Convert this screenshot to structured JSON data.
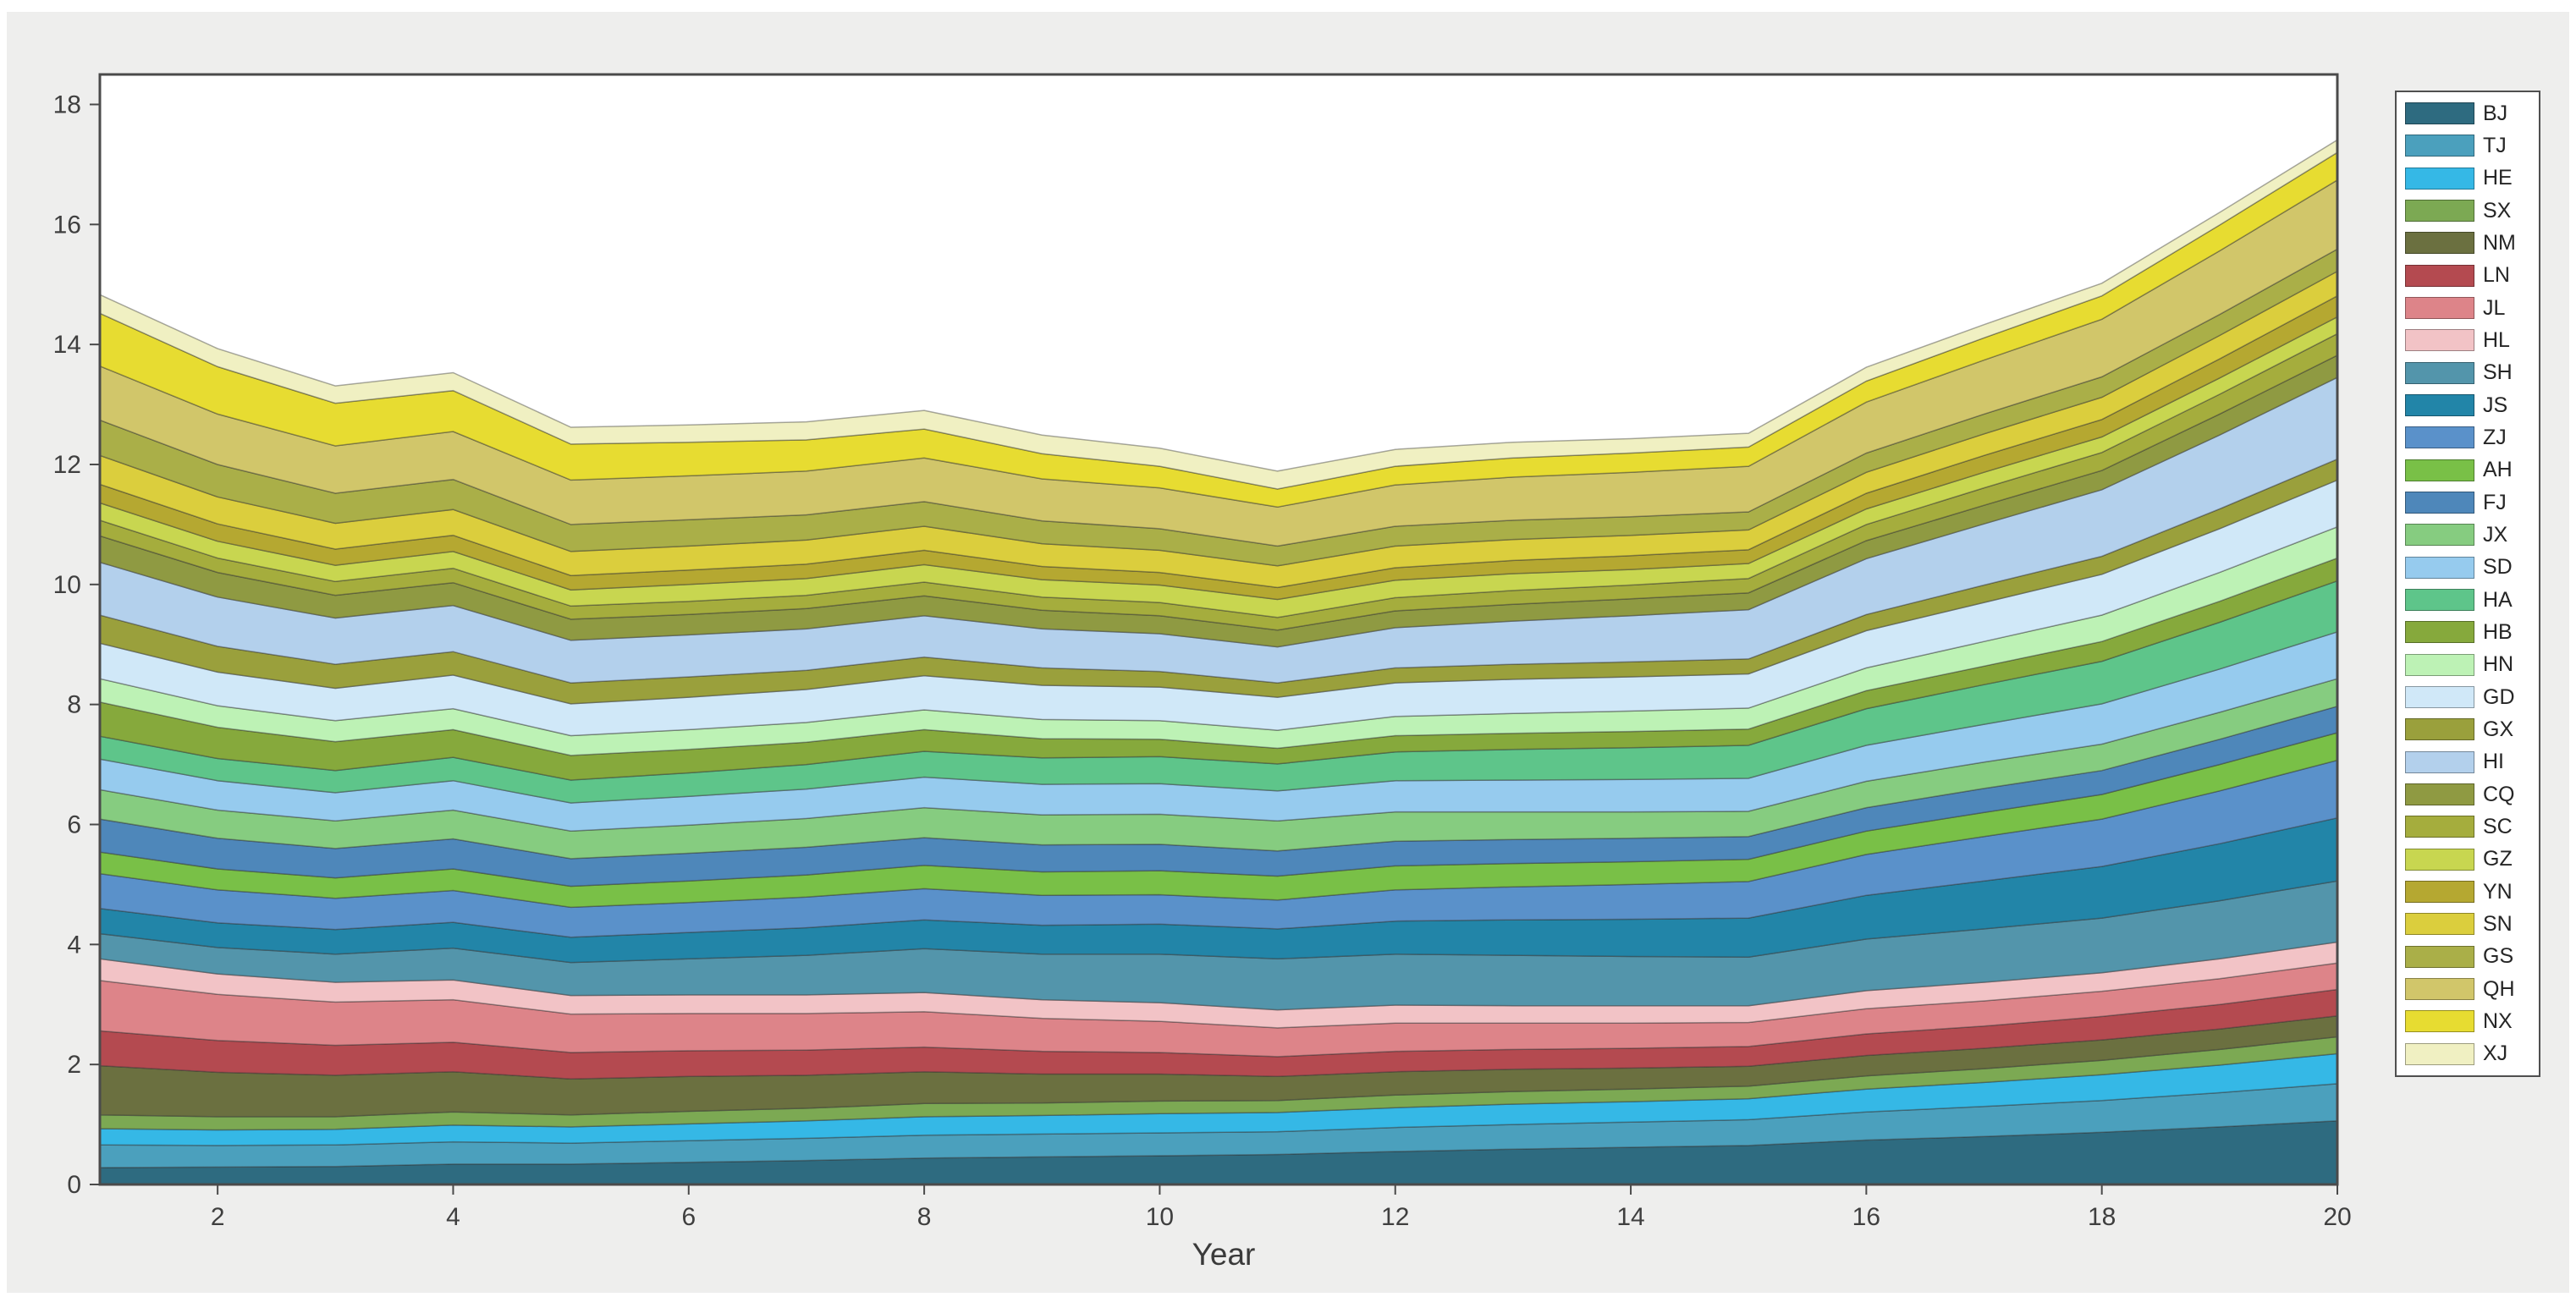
{
  "figure": {
    "background": "#eeeeed",
    "plot_background": "#ffffff",
    "axis_color": "#4a4a4a",
    "tick_label_color": "#3f3f3f",
    "area_edge_color": "rgba(50,50,50,0.42)"
  },
  "chart_data": {
    "type": "area",
    "stacked": true,
    "title": "",
    "xlabel": "Year",
    "ylabel": "",
    "x": [
      1,
      2,
      3,
      4,
      5,
      6,
      7,
      8,
      9,
      10,
      11,
      12,
      13,
      14,
      15,
      16,
      17,
      18,
      19,
      20
    ],
    "xlim": [
      1,
      20
    ],
    "ylim": [
      0,
      18.5
    ],
    "x_ticks": [
      2,
      4,
      6,
      8,
      10,
      12,
      14,
      16,
      18,
      20
    ],
    "y_ticks": [
      0,
      2,
      4,
      6,
      8,
      10,
      12,
      14,
      16,
      18
    ],
    "grid": false,
    "legend_position": "right-outside",
    "series": [
      {
        "name": "BJ",
        "color": "#2e6b80",
        "values": [
          0.28,
          0.29,
          0.3,
          0.34,
          0.34,
          0.37,
          0.4,
          0.44,
          0.46,
          0.48,
          0.5,
          0.55,
          0.59,
          0.62,
          0.65,
          0.74,
          0.8,
          0.87,
          0.96,
          1.06
        ]
      },
      {
        "name": "TJ",
        "color": "#4ba0bd",
        "values": [
          0.38,
          0.36,
          0.36,
          0.37,
          0.35,
          0.36,
          0.37,
          0.38,
          0.38,
          0.38,
          0.38,
          0.4,
          0.41,
          0.42,
          0.43,
          0.47,
          0.5,
          0.53,
          0.57,
          0.62
        ]
      },
      {
        "name": "HE",
        "color": "#35b8e6",
        "values": [
          0.27,
          0.26,
          0.26,
          0.28,
          0.27,
          0.28,
          0.29,
          0.31,
          0.31,
          0.32,
          0.32,
          0.33,
          0.34,
          0.34,
          0.35,
          0.38,
          0.4,
          0.43,
          0.46,
          0.5
        ]
      },
      {
        "name": "SX",
        "color": "#7ca953",
        "values": [
          0.23,
          0.22,
          0.21,
          0.22,
          0.2,
          0.21,
          0.21,
          0.22,
          0.21,
          0.21,
          0.2,
          0.21,
          0.21,
          0.21,
          0.21,
          0.22,
          0.23,
          0.24,
          0.26,
          0.28
        ]
      },
      {
        "name": "NM",
        "color": "#6b7040",
        "values": [
          0.82,
          0.74,
          0.69,
          0.67,
          0.6,
          0.58,
          0.55,
          0.53,
          0.48,
          0.45,
          0.4,
          0.39,
          0.37,
          0.35,
          0.33,
          0.34,
          0.34,
          0.34,
          0.34,
          0.35
        ]
      },
      {
        "name": "LN",
        "color": "#b44a50",
        "values": [
          0.58,
          0.53,
          0.5,
          0.49,
          0.44,
          0.43,
          0.42,
          0.41,
          0.38,
          0.36,
          0.33,
          0.34,
          0.33,
          0.33,
          0.33,
          0.36,
          0.37,
          0.39,
          0.41,
          0.44
        ]
      },
      {
        "name": "JL",
        "color": "#dd8489",
        "values": [
          0.84,
          0.77,
          0.72,
          0.71,
          0.64,
          0.62,
          0.61,
          0.59,
          0.55,
          0.52,
          0.48,
          0.47,
          0.44,
          0.42,
          0.4,
          0.42,
          0.42,
          0.42,
          0.43,
          0.44
        ]
      },
      {
        "name": "HL",
        "color": "#f2c3c6",
        "values": [
          0.36,
          0.34,
          0.33,
          0.33,
          0.31,
          0.31,
          0.31,
          0.32,
          0.31,
          0.31,
          0.3,
          0.3,
          0.29,
          0.29,
          0.28,
          0.3,
          0.31,
          0.31,
          0.33,
          0.35
        ]
      },
      {
        "name": "SH",
        "color": "#5395ab",
        "values": [
          0.42,
          0.44,
          0.47,
          0.53,
          0.55,
          0.6,
          0.66,
          0.73,
          0.76,
          0.81,
          0.85,
          0.85,
          0.84,
          0.82,
          0.81,
          0.86,
          0.89,
          0.91,
          0.97,
          1.02
        ]
      },
      {
        "name": "JS",
        "color": "#2285a8",
        "values": [
          0.42,
          0.41,
          0.41,
          0.43,
          0.42,
          0.44,
          0.46,
          0.48,
          0.48,
          0.5,
          0.5,
          0.55,
          0.59,
          0.62,
          0.65,
          0.73,
          0.8,
          0.86,
          0.95,
          1.05
        ]
      },
      {
        "name": "ZJ",
        "color": "#5a91ca",
        "values": [
          0.58,
          0.55,
          0.52,
          0.53,
          0.5,
          0.5,
          0.51,
          0.52,
          0.5,
          0.49,
          0.48,
          0.52,
          0.55,
          0.58,
          0.61,
          0.68,
          0.74,
          0.79,
          0.88,
          0.96
        ]
      },
      {
        "name": "AH",
        "color": "#79c047",
        "values": [
          0.36,
          0.35,
          0.34,
          0.36,
          0.35,
          0.36,
          0.37,
          0.39,
          0.39,
          0.4,
          0.4,
          0.4,
          0.39,
          0.38,
          0.37,
          0.39,
          0.4,
          0.41,
          0.44,
          0.46
        ]
      },
      {
        "name": "FJ",
        "color": "#4e87ba",
        "values": [
          0.55,
          0.51,
          0.49,
          0.5,
          0.46,
          0.46,
          0.46,
          0.46,
          0.45,
          0.44,
          0.42,
          0.41,
          0.4,
          0.39,
          0.38,
          0.39,
          0.4,
          0.4,
          0.42,
          0.44
        ]
      },
      {
        "name": "JX",
        "color": "#86cc80",
        "values": [
          0.49,
          0.47,
          0.46,
          0.48,
          0.46,
          0.47,
          0.48,
          0.5,
          0.5,
          0.5,
          0.5,
          0.49,
          0.46,
          0.44,
          0.42,
          0.44,
          0.44,
          0.44,
          0.45,
          0.46
        ]
      },
      {
        "name": "SD",
        "color": "#96cbee",
        "values": [
          0.51,
          0.49,
          0.47,
          0.49,
          0.47,
          0.48,
          0.49,
          0.51,
          0.51,
          0.51,
          0.5,
          0.52,
          0.53,
          0.54,
          0.55,
          0.6,
          0.63,
          0.67,
          0.72,
          0.78
        ]
      },
      {
        "name": "HA",
        "color": "#5ec58a",
        "values": [
          0.38,
          0.37,
          0.37,
          0.39,
          0.38,
          0.39,
          0.41,
          0.43,
          0.44,
          0.45,
          0.45,
          0.48,
          0.51,
          0.53,
          0.55,
          0.61,
          0.66,
          0.71,
          0.78,
          0.85
        ]
      },
      {
        "name": "HB",
        "color": "#86a93c",
        "values": [
          0.57,
          0.52,
          0.48,
          0.46,
          0.41,
          0.39,
          0.37,
          0.36,
          0.32,
          0.29,
          0.26,
          0.27,
          0.27,
          0.27,
          0.27,
          0.3,
          0.31,
          0.33,
          0.35,
          0.38
        ]
      },
      {
        "name": "HN",
        "color": "#bdf2b5",
        "values": [
          0.39,
          0.36,
          0.35,
          0.35,
          0.33,
          0.33,
          0.33,
          0.33,
          0.32,
          0.31,
          0.3,
          0.32,
          0.33,
          0.34,
          0.35,
          0.38,
          0.41,
          0.44,
          0.48,
          0.52
        ]
      },
      {
        "name": "GD",
        "color": "#d0e8f8",
        "values": [
          0.59,
          0.56,
          0.54,
          0.56,
          0.53,
          0.54,
          0.55,
          0.57,
          0.57,
          0.56,
          0.55,
          0.56,
          0.57,
          0.57,
          0.57,
          0.62,
          0.65,
          0.68,
          0.73,
          0.78
        ]
      },
      {
        "name": "GX",
        "color": "#9aa03c",
        "values": [
          0.47,
          0.43,
          0.4,
          0.39,
          0.35,
          0.34,
          0.32,
          0.31,
          0.29,
          0.26,
          0.24,
          0.25,
          0.25,
          0.25,
          0.25,
          0.27,
          0.29,
          0.3,
          0.33,
          0.35
        ]
      },
      {
        "name": "HI",
        "color": "#b3d0ec",
        "values": [
          0.88,
          0.82,
          0.77,
          0.77,
          0.71,
          0.7,
          0.69,
          0.69,
          0.65,
          0.63,
          0.6,
          0.67,
          0.72,
          0.77,
          0.82,
          0.93,
          1.02,
          1.11,
          1.23,
          1.36
        ]
      },
      {
        "name": "CQ",
        "color": "#8f9a42",
        "values": [
          0.44,
          0.41,
          0.38,
          0.38,
          0.35,
          0.34,
          0.34,
          0.33,
          0.31,
          0.3,
          0.28,
          0.28,
          0.28,
          0.28,
          0.28,
          0.3,
          0.31,
          0.32,
          0.35,
          0.37
        ]
      },
      {
        "name": "SC",
        "color": "#a5ad3d",
        "values": [
          0.26,
          0.24,
          0.23,
          0.24,
          0.22,
          0.22,
          0.22,
          0.23,
          0.22,
          0.22,
          0.21,
          0.22,
          0.23,
          0.23,
          0.24,
          0.27,
          0.29,
          0.3,
          0.33,
          0.36
        ]
      },
      {
        "name": "GZ",
        "color": "#c8d650",
        "values": [
          0.29,
          0.28,
          0.27,
          0.28,
          0.27,
          0.28,
          0.28,
          0.29,
          0.29,
          0.29,
          0.3,
          0.29,
          0.28,
          0.26,
          0.25,
          0.26,
          0.26,
          0.26,
          0.27,
          0.28
        ]
      },
      {
        "name": "YN",
        "color": "#b5a831",
        "values": [
          0.31,
          0.29,
          0.27,
          0.27,
          0.24,
          0.24,
          0.24,
          0.24,
          0.22,
          0.21,
          0.2,
          0.21,
          0.22,
          0.23,
          0.23,
          0.26,
          0.28,
          0.29,
          0.32,
          0.35
        ]
      },
      {
        "name": "SN",
        "color": "#dbce3d",
        "values": [
          0.48,
          0.45,
          0.43,
          0.43,
          0.4,
          0.4,
          0.4,
          0.4,
          0.38,
          0.37,
          0.36,
          0.36,
          0.35,
          0.34,
          0.33,
          0.35,
          0.36,
          0.37,
          0.39,
          0.41
        ]
      },
      {
        "name": "GS",
        "color": "#aaaf48",
        "values": [
          0.59,
          0.54,
          0.5,
          0.5,
          0.45,
          0.44,
          0.42,
          0.41,
          0.38,
          0.36,
          0.33,
          0.33,
          0.32,
          0.31,
          0.3,
          0.32,
          0.33,
          0.34,
          0.35,
          0.37
        ]
      },
      {
        "name": "QH",
        "color": "#d1c66a",
        "values": [
          0.9,
          0.84,
          0.79,
          0.8,
          0.74,
          0.73,
          0.73,
          0.73,
          0.7,
          0.68,
          0.65,
          0.69,
          0.72,
          0.74,
          0.76,
          0.85,
          0.9,
          0.96,
          1.06,
          1.15
        ]
      },
      {
        "name": "NX",
        "color": "#e7dc31",
        "values": [
          0.88,
          0.79,
          0.71,
          0.68,
          0.6,
          0.56,
          0.52,
          0.48,
          0.42,
          0.36,
          0.3,
          0.31,
          0.32,
          0.32,
          0.32,
          0.35,
          0.37,
          0.39,
          0.43,
          0.46
        ]
      },
      {
        "name": "XJ",
        "color": "#f0f0c2",
        "values": [
          0.31,
          0.3,
          0.29,
          0.3,
          0.28,
          0.29,
          0.3,
          0.31,
          0.31,
          0.3,
          0.3,
          0.28,
          0.26,
          0.24,
          0.23,
          0.23,
          0.22,
          0.21,
          0.21,
          0.21
        ]
      }
    ]
  }
}
